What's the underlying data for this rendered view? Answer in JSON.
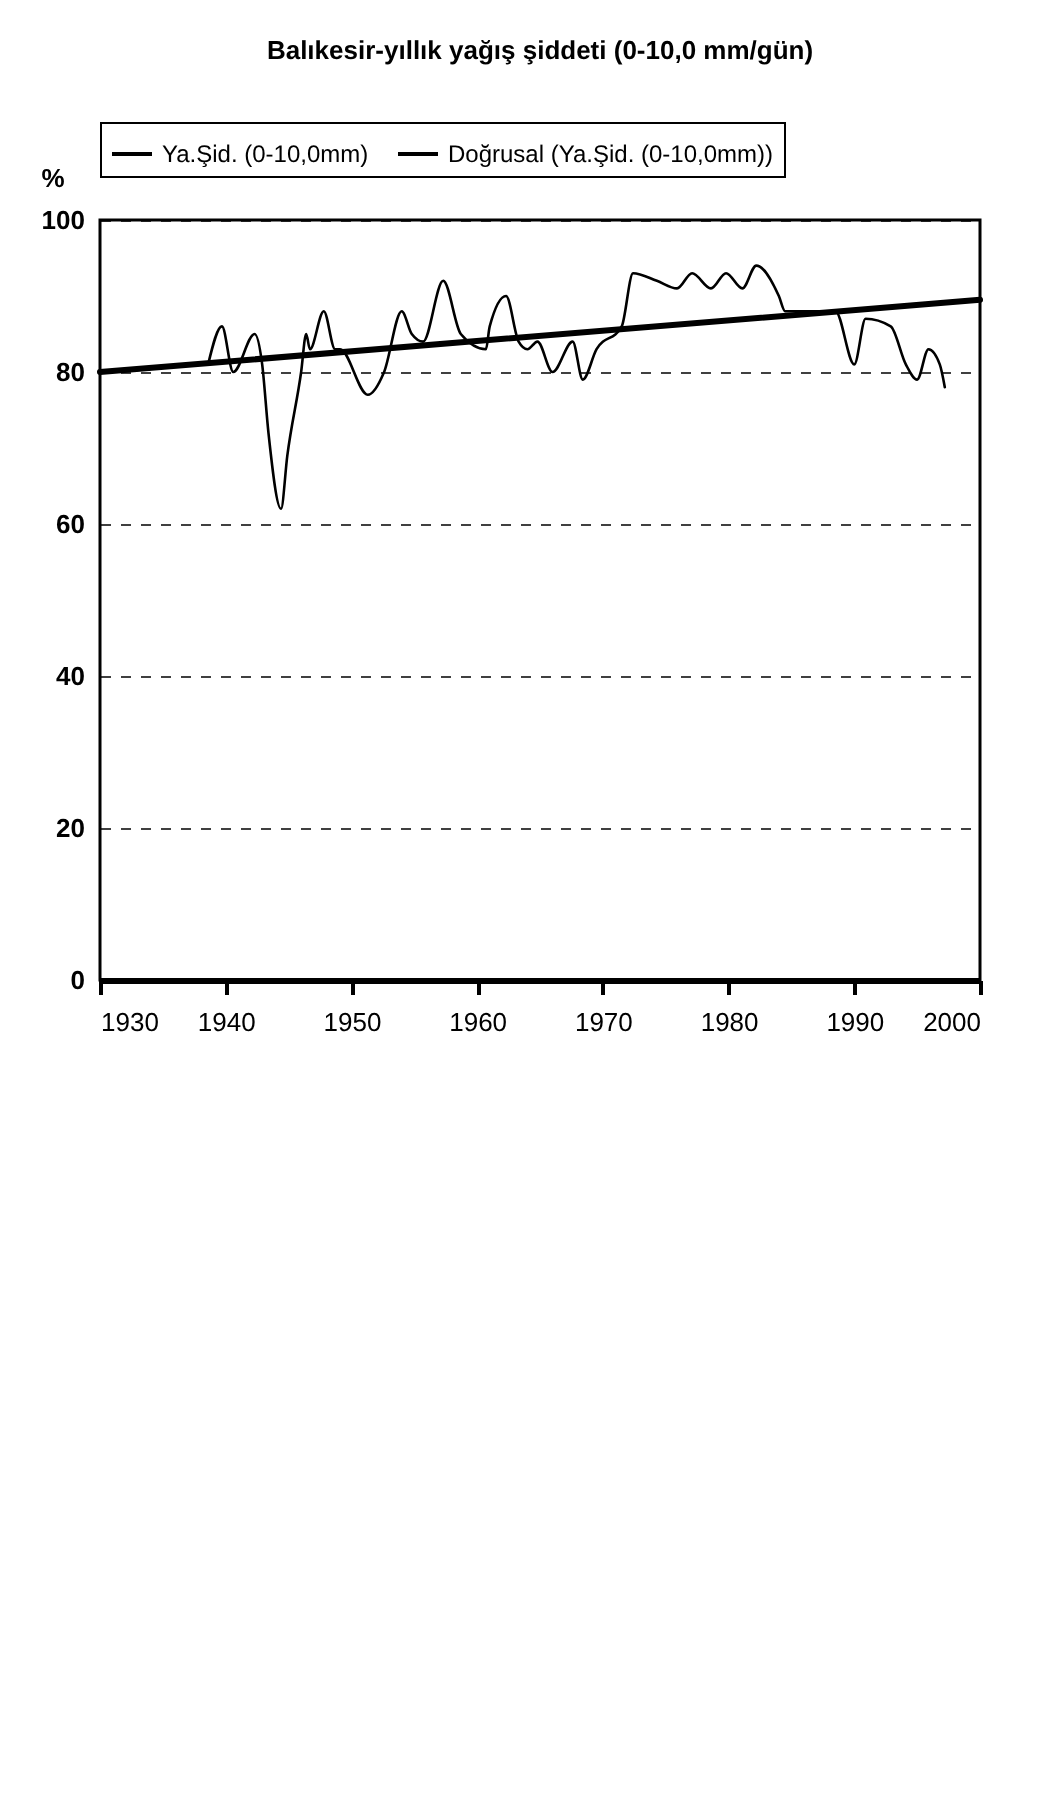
{
  "chart_data": {
    "type": "line",
    "title": "Balıkesir-yıllık yağış şiddeti (0-10,0 mm/gün)",
    "ylabel": "%",
    "xlim": [
      1930,
      2000
    ],
    "xticks": [
      1930,
      1940,
      1950,
      1960,
      1970,
      1980,
      1990,
      2000
    ],
    "ylim": [
      0,
      100
    ],
    "yticks": [
      0,
      20,
      40,
      60,
      80,
      100
    ],
    "grid": "y",
    "legend": "top",
    "line_style": "solid",
    "series": [
      {
        "name": "Ya.Şid. (0-10,0mm)",
        "color": "#000000",
        "x": [
          1938.6,
          1939.7,
          1940.6,
          1942.3,
          1942.9,
          1943.4,
          1944.4,
          1944.9,
          1946.0,
          1946.4,
          1946.7,
          1947.8,
          1948.7,
          1949.1,
          1951.3,
          1952.6,
          1954.0,
          1954.8,
          1955.7,
          1957.3,
          1958.7,
          1960.7,
          1961.0,
          1962.3,
          1963.3,
          1964.0,
          1964.8,
          1966.0,
          1967.6,
          1968.4,
          1969.5,
          1971.5,
          1972.4,
          1974.3,
          1975.9,
          1977.1,
          1978.6,
          1979.8,
          1981.1,
          1982.2,
          1984.0,
          1984.5,
          1988.5,
          1990.0,
          1990.9,
          1992.9,
          1994.1,
          1995.0,
          1995.9,
          1996.8,
          1997.2
        ],
        "values": [
          81,
          86,
          80,
          85,
          81,
          72,
          62,
          69,
          80,
          85,
          83,
          88,
          83,
          83,
          77,
          80,
          88,
          85,
          84,
          92,
          85,
          83,
          86,
          90,
          84,
          83,
          84,
          80,
          84,
          79,
          83,
          86,
          93,
          92,
          91,
          93,
          91,
          93,
          91,
          94,
          90,
          88,
          88,
          81,
          87,
          86,
          81,
          79,
          83,
          81,
          78
        ]
      },
      {
        "name": "Doğrusal (Ya.Şid. (0-10,0mm))",
        "color": "#000000",
        "x": [
          1930,
          2000
        ],
        "values": [
          80,
          89.5
        ]
      }
    ]
  }
}
